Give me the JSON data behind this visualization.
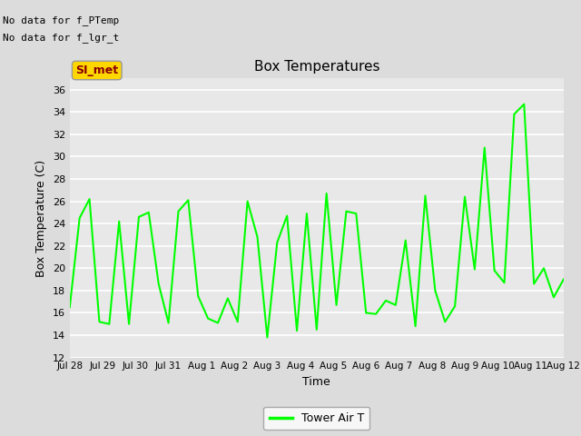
{
  "title": "Box Temperatures",
  "xlabel": "Time",
  "ylabel": "Box Temperature (C)",
  "ylim": [
    12,
    37
  ],
  "yticks": [
    12,
    14,
    16,
    18,
    20,
    22,
    24,
    26,
    28,
    30,
    32,
    34,
    36
  ],
  "line_color": "#00FF00",
  "line_width": 1.5,
  "background_color": "#E8E8E8",
  "figure_background": "#DCDCDC",
  "annotations_upper_left": [
    "No data for f_PTemp",
    "No data for f_lgr_t"
  ],
  "box_label": "SI_met",
  "legend_label": "Tower Air T",
  "x_tick_labels": [
    "Jul 28",
    "Jul 29",
    "Jul 30",
    "Jul 31",
    "Aug 1",
    "Aug 2",
    "Aug 3",
    "Aug 4",
    "Aug 5",
    "Aug 6",
    "Aug 7",
    "Aug 8",
    "Aug 9",
    "Aug 10",
    "Aug 11",
    "Aug 12"
  ],
  "tower_air_t": [
    16.5,
    24.5,
    26.2,
    15.2,
    15.0,
    24.2,
    15.0,
    24.6,
    25.0,
    18.6,
    15.1,
    25.1,
    26.1,
    17.5,
    15.5,
    15.1,
    17.3,
    15.2,
    26.0,
    22.8,
    13.8,
    22.3,
    24.7,
    14.4,
    24.9,
    14.5,
    26.7,
    16.7,
    25.1,
    24.9,
    16.0,
    15.9,
    17.1,
    16.7,
    22.5,
    14.8,
    26.5,
    18.0,
    15.2,
    16.6,
    26.4,
    19.9,
    30.8,
    19.8,
    18.7,
    33.8,
    34.7,
    18.6,
    20.0,
    17.4,
    19.0
  ]
}
